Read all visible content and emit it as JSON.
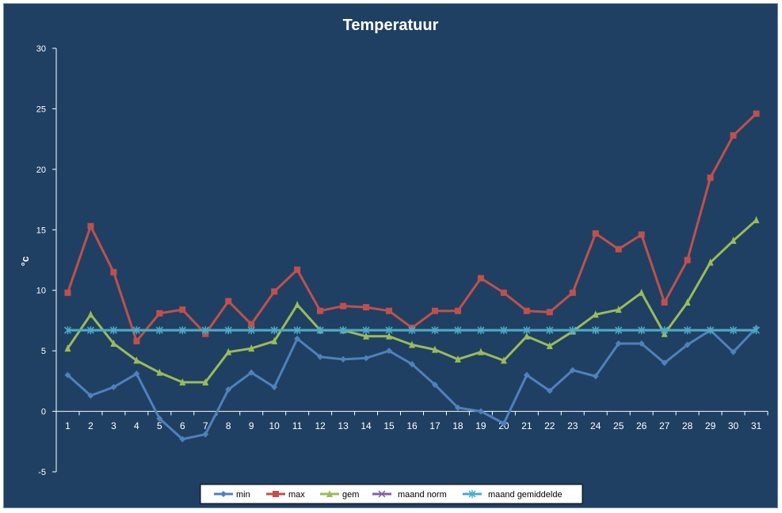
{
  "chart_data": {
    "type": "line",
    "title": "Temperatuur",
    "xlabel": "",
    "ylabel": "°c",
    "ylim": [
      -5,
      30
    ],
    "yticks": [
      "30",
      "25",
      "20",
      "15",
      "10",
      "5",
      "0",
      "-5"
    ],
    "ytick_values": [
      30,
      25,
      20,
      15,
      10,
      5,
      0,
      -5
    ],
    "categories": [
      "1",
      "2",
      "3",
      "4",
      "5",
      "6",
      "7",
      "8",
      "9",
      "10",
      "11",
      "12",
      "13",
      "14",
      "15",
      "16",
      "17",
      "18",
      "19",
      "20",
      "21",
      "22",
      "23",
      "24",
      "25",
      "26",
      "27",
      "28",
      "29",
      "30",
      "31"
    ],
    "grid": false,
    "legend_position": "bottom",
    "series": [
      {
        "name": "min",
        "color": "#4f81bd",
        "marker": "diamond",
        "values": [
          3.0,
          1.3,
          2.0,
          3.1,
          -0.6,
          -2.3,
          -1.9,
          1.8,
          3.2,
          2.0,
          6.0,
          4.5,
          4.3,
          4.4,
          5.0,
          3.9,
          2.2,
          0.3,
          0.0,
          -1.0,
          3.0,
          1.7,
          3.4,
          2.9,
          5.6,
          5.6,
          4.0,
          5.5,
          6.7,
          4.9,
          6.9
        ]
      },
      {
        "name": "max",
        "color": "#c0504d",
        "marker": "square",
        "values": [
          9.8,
          15.3,
          11.5,
          5.8,
          8.1,
          8.4,
          6.4,
          9.1,
          7.2,
          9.9,
          11.7,
          8.3,
          8.7,
          8.6,
          8.3,
          6.9,
          8.3,
          8.3,
          11.0,
          9.8,
          8.3,
          8.2,
          9.8,
          14.7,
          13.4,
          14.6,
          9.0,
          12.5,
          19.3,
          22.8,
          24.6
        ]
      },
      {
        "name": "gem",
        "color": "#9bbb59",
        "marker": "triangle",
        "values": [
          5.2,
          8.0,
          5.6,
          4.2,
          3.2,
          2.4,
          2.4,
          4.9,
          5.2,
          5.8,
          8.8,
          6.7,
          6.7,
          6.2,
          6.2,
          5.5,
          5.1,
          4.3,
          4.9,
          4.2,
          6.2,
          5.4,
          6.6,
          8.0,
          8.4,
          9.8,
          6.4,
          9.0,
          12.3,
          14.1,
          15.8
        ]
      },
      {
        "name": "maand norm",
        "color": "#8064a2",
        "marker": "x",
        "values": [
          6.7,
          6.7,
          6.7,
          6.7,
          6.7,
          6.7,
          6.7,
          6.7,
          6.7,
          6.7,
          6.7,
          6.7,
          6.7,
          6.7,
          6.7,
          6.7,
          6.7,
          6.7,
          6.7,
          6.7,
          6.7,
          6.7,
          6.7,
          6.7,
          6.7,
          6.7,
          6.7,
          6.7,
          6.7,
          6.7,
          6.7
        ]
      },
      {
        "name": "maand gemiddelde",
        "color": "#4bacc6",
        "marker": "star",
        "values": [
          6.7,
          6.7,
          6.7,
          6.7,
          6.7,
          6.7,
          6.7,
          6.7,
          6.7,
          6.7,
          6.7,
          6.7,
          6.7,
          6.7,
          6.7,
          6.7,
          6.7,
          6.7,
          6.7,
          6.7,
          6.7,
          6.7,
          6.7,
          6.7,
          6.7,
          6.7,
          6.7,
          6.7,
          6.7,
          6.7,
          6.7
        ]
      }
    ]
  }
}
